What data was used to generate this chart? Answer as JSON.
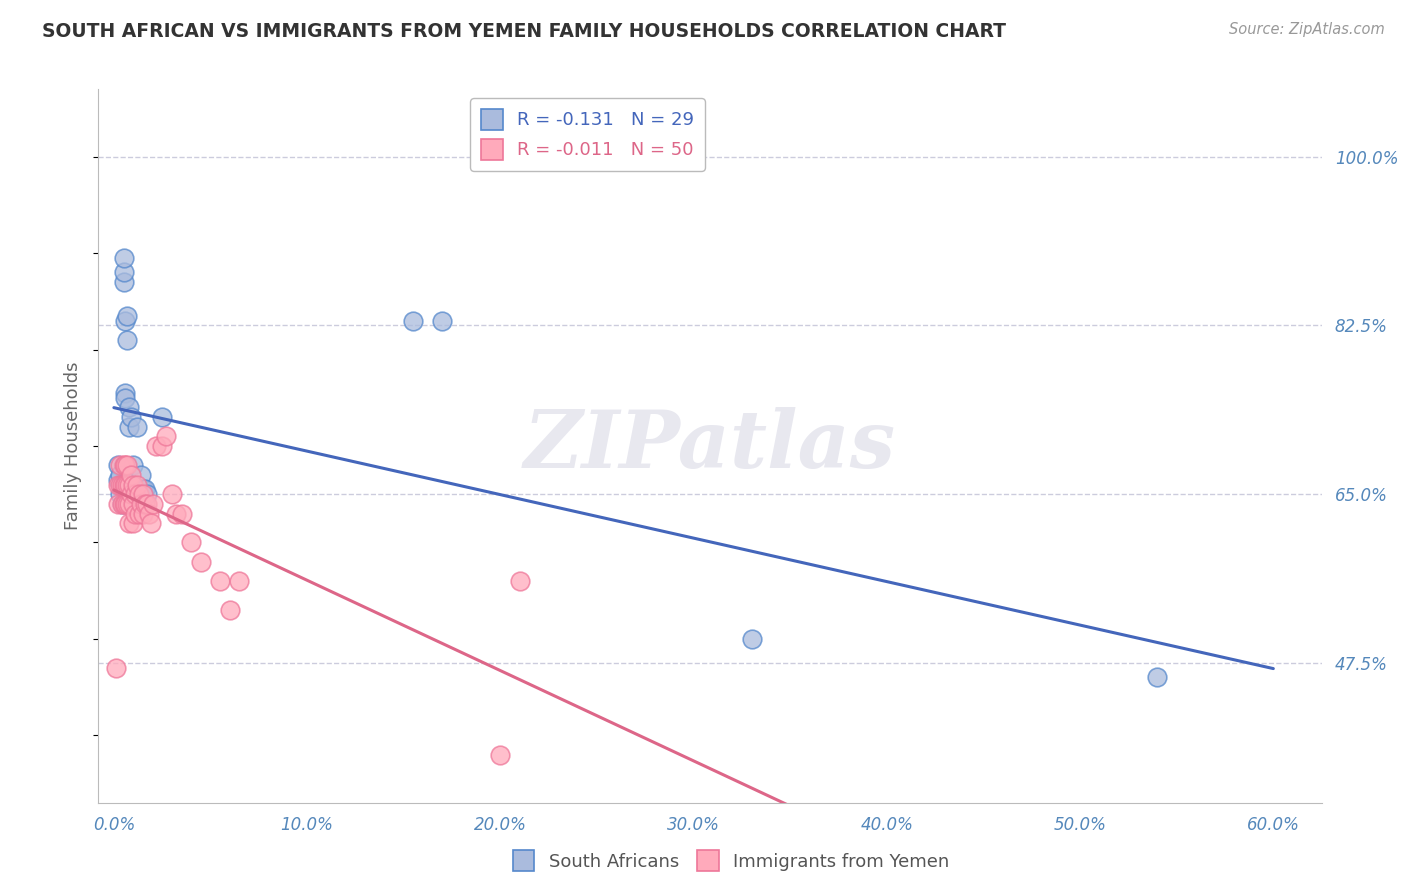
{
  "title": "SOUTH AFRICAN VS IMMIGRANTS FROM YEMEN FAMILY HOUSEHOLDS CORRELATION CHART",
  "source": "Source: ZipAtlas.com",
  "ylabel": "Family Households",
  "xlabel_ticks": [
    "0.0%",
    "10.0%",
    "20.0%",
    "30.0%",
    "40.0%",
    "50.0%",
    "60.0%"
  ],
  "xlabel_vals": [
    0.0,
    0.1,
    0.2,
    0.3,
    0.4,
    0.5,
    0.6
  ],
  "ytick_labels": [
    "100.0%",
    "82.5%",
    "65.0%",
    "47.5%"
  ],
  "ytick_vals": [
    1.0,
    0.825,
    0.65,
    0.475
  ],
  "ylim": [
    0.33,
    1.07
  ],
  "xlim": [
    -0.008,
    0.625
  ],
  "blue_R": -0.131,
  "blue_N": 29,
  "pink_R": -0.011,
  "pink_N": 50,
  "legend_label2_blue": "South Africans",
  "legend_label2_pink": "Immigrants from Yemen",
  "watermark": "ZIPatlas",
  "blue_color": "#AABBDD",
  "pink_color": "#FFAABB",
  "blue_edge_color": "#5588CC",
  "pink_edge_color": "#EE7799",
  "blue_line_color": "#4466BB",
  "pink_line_color": "#DD6688",
  "title_color": "#333333",
  "axis_label_color": "#5588BB",
  "grid_color": "#CCCCDD",
  "blue_scatter_x": [
    0.002,
    0.002,
    0.003,
    0.003,
    0.004,
    0.004,
    0.005,
    0.005,
    0.005,
    0.006,
    0.006,
    0.006,
    0.007,
    0.007,
    0.008,
    0.008,
    0.009,
    0.01,
    0.01,
    0.012,
    0.014,
    0.015,
    0.016,
    0.017,
    0.025,
    0.155,
    0.17,
    0.33,
    0.54
  ],
  "blue_scatter_y": [
    0.68,
    0.665,
    0.67,
    0.65,
    0.66,
    0.64,
    0.87,
    0.88,
    0.895,
    0.755,
    0.83,
    0.75,
    0.835,
    0.81,
    0.74,
    0.72,
    0.73,
    0.68,
    0.66,
    0.72,
    0.67,
    0.655,
    0.655,
    0.65,
    0.73,
    0.83,
    0.83,
    0.5,
    0.46
  ],
  "pink_scatter_x": [
    0.001,
    0.002,
    0.002,
    0.003,
    0.003,
    0.004,
    0.004,
    0.005,
    0.005,
    0.005,
    0.006,
    0.006,
    0.006,
    0.007,
    0.007,
    0.007,
    0.008,
    0.008,
    0.008,
    0.009,
    0.009,
    0.01,
    0.01,
    0.01,
    0.011,
    0.011,
    0.012,
    0.013,
    0.013,
    0.014,
    0.015,
    0.015,
    0.016,
    0.017,
    0.018,
    0.019,
    0.02,
    0.022,
    0.025,
    0.027,
    0.03,
    0.032,
    0.035,
    0.04,
    0.045,
    0.055,
    0.06,
    0.065,
    0.2,
    0.21
  ],
  "pink_scatter_y": [
    0.47,
    0.66,
    0.64,
    0.68,
    0.66,
    0.66,
    0.64,
    0.68,
    0.66,
    0.64,
    0.68,
    0.66,
    0.64,
    0.68,
    0.66,
    0.64,
    0.66,
    0.64,
    0.62,
    0.67,
    0.65,
    0.66,
    0.64,
    0.62,
    0.65,
    0.63,
    0.66,
    0.65,
    0.63,
    0.64,
    0.65,
    0.63,
    0.64,
    0.64,
    0.63,
    0.62,
    0.64,
    0.7,
    0.7,
    0.71,
    0.65,
    0.63,
    0.63,
    0.6,
    0.58,
    0.56,
    0.53,
    0.56,
    0.38,
    0.56
  ]
}
